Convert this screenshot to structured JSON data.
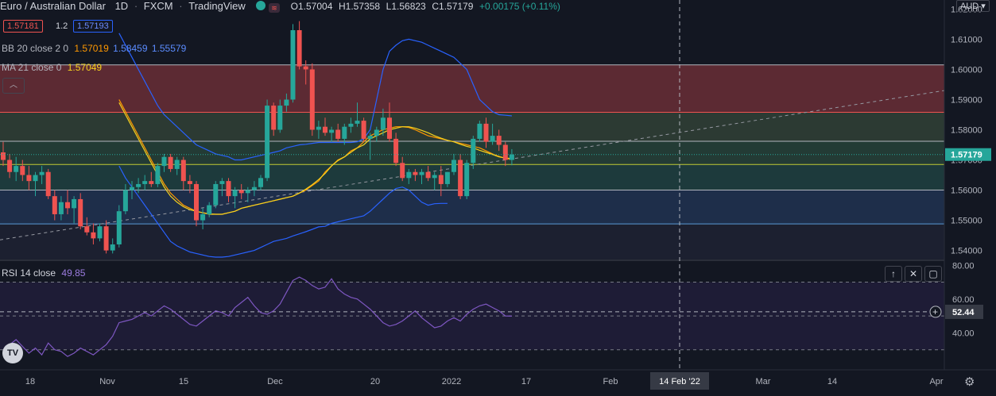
{
  "header": {
    "symbol": "Euro / Australian Dollar",
    "interval": "1D",
    "exchange": "FXCM",
    "source": "TradingView",
    "ohlc": {
      "o": "O1.57004",
      "h": "H1.57358",
      "l": "L1.56823",
      "c": "C1.57179",
      "change": "+0.00175 (+0.11%)"
    },
    "currency": "AUD"
  },
  "trade_panel": {
    "sell": "1.57181",
    "spread": "1.2",
    "buy": "1.57193"
  },
  "indicators": {
    "bb": {
      "label": "BB 20 close 2 0",
      "basis": "1.57019",
      "upper": "1.58459",
      "lower": "1.55579"
    },
    "ma": {
      "label": "MA 21 close 0",
      "value": "1.57049"
    },
    "rsi": {
      "label": "RSI 14 close",
      "value": "49.85"
    }
  },
  "price_axis": {
    "ticks": [
      "1.62000",
      "1.61000",
      "1.60000",
      "1.59000",
      "1.58000",
      "1.57000",
      "1.56000",
      "1.55000",
      "1.54000"
    ],
    "ticks_values": [
      1.62,
      1.61,
      1.6,
      1.59,
      1.58,
      1.57,
      1.56,
      1.55,
      1.54
    ],
    "last_price": "1.57179",
    "last_price_value": 1.57179
  },
  "rsi_axis": {
    "ticks": [
      "80.00",
      "60.00",
      "40.00"
    ],
    "ticks_values": [
      80,
      60,
      40
    ],
    "crosshair_value": "52.44",
    "crosshair_value_num": 52.44
  },
  "time_axis": {
    "labels": [
      "18",
      "Nov",
      "15",
      "Dec",
      "20",
      "2022",
      "17",
      "Feb",
      "14 Feb '22",
      "Mar",
      "14",
      "Apr"
    ]
  },
  "colors": {
    "up": "#26a69a",
    "down": "#ef5350",
    "bb": "#2962ff",
    "bb_basis": "#ff9800",
    "ma": "#f5d21f",
    "rsi": "#7e57c2"
  },
  "chart_data": {
    "type": "candlestick",
    "candles": [
      [
        1.5725,
        1.576,
        1.568,
        1.57
      ],
      [
        1.57,
        1.572,
        1.564,
        1.566
      ],
      [
        1.566,
        1.571,
        1.563,
        1.568
      ],
      [
        1.568,
        1.57,
        1.563,
        1.565
      ],
      [
        1.565,
        1.568,
        1.56,
        1.563
      ],
      [
        1.563,
        1.566,
        1.558,
        1.565
      ],
      [
        1.565,
        1.568,
        1.562,
        1.566
      ],
      [
        1.566,
        1.567,
        1.557,
        1.558
      ],
      [
        1.558,
        1.56,
        1.55,
        1.552
      ],
      [
        1.552,
        1.558,
        1.55,
        1.556
      ],
      [
        1.556,
        1.56,
        1.552,
        1.554
      ],
      [
        1.554,
        1.558,
        1.549,
        1.557
      ],
      [
        1.557,
        1.559,
        1.547,
        1.548
      ],
      [
        1.548,
        1.551,
        1.545,
        1.546
      ],
      [
        1.546,
        1.549,
        1.542,
        1.544
      ],
      [
        1.544,
        1.549,
        1.543,
        1.548
      ],
      [
        1.548,
        1.55,
        1.539,
        1.54
      ],
      [
        1.54,
        1.544,
        1.539,
        1.542
      ],
      [
        1.542,
        1.555,
        1.541,
        1.553
      ],
      [
        1.553,
        1.562,
        1.552,
        1.56
      ],
      [
        1.56,
        1.563,
        1.557,
        1.561
      ],
      [
        1.561,
        1.564,
        1.559,
        1.562
      ],
      [
        1.562,
        1.565,
        1.56,
        1.563
      ],
      [
        1.563,
        1.566,
        1.561,
        1.562
      ],
      [
        1.562,
        1.569,
        1.561,
        1.568
      ],
      [
        1.568,
        1.572,
        1.566,
        1.571
      ],
      [
        1.571,
        1.572,
        1.566,
        1.567
      ],
      [
        1.567,
        1.571,
        1.565,
        1.57
      ],
      [
        1.57,
        1.571,
        1.56,
        1.563
      ],
      [
        1.563,
        1.565,
        1.559,
        1.562
      ],
      [
        1.562,
        1.563,
        1.548,
        1.55
      ],
      [
        1.55,
        1.554,
        1.547,
        1.552
      ],
      [
        1.552,
        1.556,
        1.551,
        1.555
      ],
      [
        1.555,
        1.563,
        1.554,
        1.562
      ],
      [
        1.562,
        1.564,
        1.558,
        1.563
      ],
      [
        1.563,
        1.564,
        1.556,
        1.558
      ],
      [
        1.558,
        1.561,
        1.554,
        1.56
      ],
      [
        1.56,
        1.562,
        1.557,
        1.559
      ],
      [
        1.559,
        1.561,
        1.556,
        1.56
      ],
      [
        1.56,
        1.563,
        1.558,
        1.561
      ],
      [
        1.561,
        1.565,
        1.56,
        1.564
      ],
      [
        1.564,
        1.59,
        1.563,
        1.588
      ],
      [
        1.588,
        1.589,
        1.578,
        1.58
      ],
      [
        1.58,
        1.59,
        1.579,
        1.588
      ],
      [
        1.588,
        1.592,
        1.586,
        1.59
      ],
      [
        1.59,
        1.615,
        1.589,
        1.613
      ],
      [
        1.613,
        1.616,
        1.6,
        1.601
      ],
      [
        1.601,
        1.603,
        1.595,
        1.6
      ],
      [
        1.6,
        1.602,
        1.578,
        1.58
      ],
      [
        1.58,
        1.583,
        1.577,
        1.581
      ],
      [
        1.581,
        1.584,
        1.578,
        1.579
      ],
      [
        1.579,
        1.581,
        1.576,
        1.58
      ],
      [
        1.58,
        1.582,
        1.576,
        1.577
      ],
      [
        1.577,
        1.582,
        1.575,
        1.581
      ],
      [
        1.581,
        1.584,
        1.579,
        1.582
      ],
      [
        1.582,
        1.589,
        1.581,
        1.583
      ],
      [
        1.583,
        1.584,
        1.576,
        1.577
      ],
      [
        1.577,
        1.579,
        1.57,
        1.578
      ],
      [
        1.578,
        1.581,
        1.576,
        1.58
      ],
      [
        1.58,
        1.587,
        1.578,
        1.584
      ],
      [
        1.584,
        1.589,
        1.576,
        1.577
      ],
      [
        1.577,
        1.579,
        1.568,
        1.569
      ],
      [
        1.569,
        1.571,
        1.563,
        1.564
      ],
      [
        1.564,
        1.567,
        1.562,
        1.566
      ],
      [
        1.566,
        1.567,
        1.563,
        1.565
      ],
      [
        1.565,
        1.567,
        1.562,
        1.566
      ],
      [
        1.566,
        1.568,
        1.563,
        1.564
      ],
      [
        1.564,
        1.566,
        1.56,
        1.565
      ],
      [
        1.565,
        1.568,
        1.558,
        1.562
      ],
      [
        1.562,
        1.566,
        1.561,
        1.566
      ],
      [
        1.566,
        1.572,
        1.565,
        1.57
      ],
      [
        1.57,
        1.572,
        1.557,
        1.558
      ],
      [
        1.558,
        1.57,
        1.557,
        1.569
      ],
      [
        1.569,
        1.578,
        1.567,
        1.577
      ],
      [
        1.577,
        1.583,
        1.576,
        1.582
      ],
      [
        1.582,
        1.584,
        1.574,
        1.576
      ],
      [
        1.576,
        1.582,
        1.575,
        1.578
      ],
      [
        1.578,
        1.58,
        1.573,
        1.575
      ],
      [
        1.575,
        1.576,
        1.568,
        1.57
      ],
      [
        1.57,
        1.57358,
        1.56823,
        1.57179
      ]
    ],
    "bb_upper": [
      1.612,
      1.608,
      1.604,
      1.6,
      1.596,
      1.592,
      1.588,
      1.585,
      1.583,
      1.581,
      1.579,
      1.577,
      1.575,
      1.574,
      1.573,
      1.572,
      1.5715,
      1.571,
      1.57,
      1.57,
      1.5705,
      1.571,
      1.5715,
      1.572,
      1.5725,
      1.573,
      1.574,
      1.5745,
      1.575,
      1.5752,
      1.5755,
      1.5758,
      1.5758,
      1.5758,
      1.5758,
      1.5758,
      1.5758,
      1.576,
      1.577,
      1.58,
      1.59,
      1.6,
      1.606,
      1.608,
      1.6095,
      1.61,
      1.6095,
      1.609,
      1.608,
      1.607,
      1.606,
      1.605,
      1.604,
      1.602,
      1.6,
      1.595,
      1.59,
      1.588,
      1.586,
      1.585,
      1.5848,
      1.5846
    ],
    "bb_lower": [
      1.568,
      1.564,
      1.561,
      1.558,
      1.555,
      1.552,
      1.549,
      1.546,
      1.543,
      1.5415,
      1.5405,
      1.5395,
      1.539,
      1.5385,
      1.538,
      1.5378,
      1.5378,
      1.538,
      1.5385,
      1.539,
      1.5395,
      1.54,
      1.541,
      1.542,
      1.543,
      1.5435,
      1.544,
      1.5448,
      1.5455,
      1.5462,
      1.547,
      1.5478,
      1.548,
      1.549,
      1.5495,
      1.55,
      1.5505,
      1.551,
      1.5515,
      1.553,
      1.555,
      1.557,
      1.559,
      1.5605,
      1.561,
      1.56,
      1.558,
      1.556,
      1.555,
      1.5555,
      1.5556,
      1.5556
    ],
    "bb_basis": [
      1.59,
      1.586,
      1.582,
      1.578,
      1.574,
      1.57,
      1.566,
      1.562,
      1.559,
      1.557,
      1.555,
      1.554,
      1.553,
      1.5525,
      1.5522,
      1.552,
      1.552,
      1.5525,
      1.553,
      1.554,
      1.5545,
      1.555,
      1.5555,
      1.556,
      1.5565,
      1.557,
      1.5575,
      1.558,
      1.559,
      1.56,
      1.5615,
      1.563,
      1.566,
      1.568,
      1.57,
      1.571,
      1.573,
      1.574,
      1.576,
      1.578,
      1.579,
      1.58,
      1.5805,
      1.581,
      1.581,
      1.5808,
      1.58,
      1.579,
      1.578,
      1.5775,
      1.577,
      1.5765,
      1.576,
      1.5755,
      1.575,
      1.5745,
      1.574,
      1.573,
      1.572,
      1.5712,
      1.5705,
      1.5702
    ],
    "ma": [
      1.589,
      1.585,
      1.581,
      1.577,
      1.573,
      1.569,
      1.565,
      1.561,
      1.558,
      1.556,
      1.5545,
      1.5535,
      1.553,
      1.5525,
      1.552,
      1.552,
      1.552,
      1.5525,
      1.553,
      1.554,
      1.5545,
      1.555,
      1.5555,
      1.556,
      1.5565,
      1.557,
      1.5575,
      1.558,
      1.559,
      1.5603,
      1.5618,
      1.5635,
      1.5655,
      1.568,
      1.5698,
      1.571,
      1.5725,
      1.574,
      1.575,
      1.577,
      1.578,
      1.579,
      1.58,
      1.5805,
      1.581,
      1.581,
      1.5805,
      1.5798,
      1.579,
      1.578,
      1.5772,
      1.5765,
      1.576,
      1.5752,
      1.5745,
      1.574,
      1.5732,
      1.5725,
      1.5718,
      1.571,
      1.5706,
      1.5705
    ],
    "rsi": [
      29,
      33,
      36,
      32,
      28,
      31,
      27,
      34,
      30,
      29,
      26,
      28,
      31,
      29,
      27,
      30,
      33,
      38,
      46,
      47,
      48,
      50,
      52,
      50,
      53,
      56,
      54,
      51,
      48,
      45,
      44,
      47,
      50,
      53,
      52,
      50,
      55,
      58,
      61,
      56,
      52,
      51,
      53,
      57,
      64,
      71,
      73,
      71,
      68,
      66,
      67,
      72,
      66,
      63,
      61,
      60,
      57,
      54,
      50,
      46,
      44,
      45,
      47,
      50,
      53,
      49,
      46,
      43,
      44,
      47,
      49,
      47,
      51,
      54,
      56,
      57,
      55,
      53,
      50,
      49.85
    ],
    "price_range": [
      1.537,
      1.623
    ],
    "rsi_range": [
      20,
      82
    ],
    "horizontal_levels": [
      1.6015,
      1.5858,
      1.5762,
      1.5685,
      1.56,
      1.5488
    ],
    "zones": [
      {
        "from": 1.6015,
        "to": 1.5858,
        "color": "#5c2a33"
      },
      {
        "from": 1.5858,
        "to": 1.5762,
        "color": "#2c3a33"
      },
      {
        "from": 1.5762,
        "to": 1.5685,
        "color": "#233b35"
      },
      {
        "from": 1.5685,
        "to": 1.56,
        "color": "#1d3a3c"
      },
      {
        "from": 1.56,
        "to": 1.5488,
        "color": "#1e2e4a"
      },
      {
        "from": 1.5488,
        "to": 1.537,
        "color": "#1c2030"
      }
    ],
    "trendline": [
      [
        1.5435,
        0
      ],
      [
        1.593,
        1
      ]
    ],
    "rsi_levels": [
      70,
      50,
      30
    ]
  }
}
